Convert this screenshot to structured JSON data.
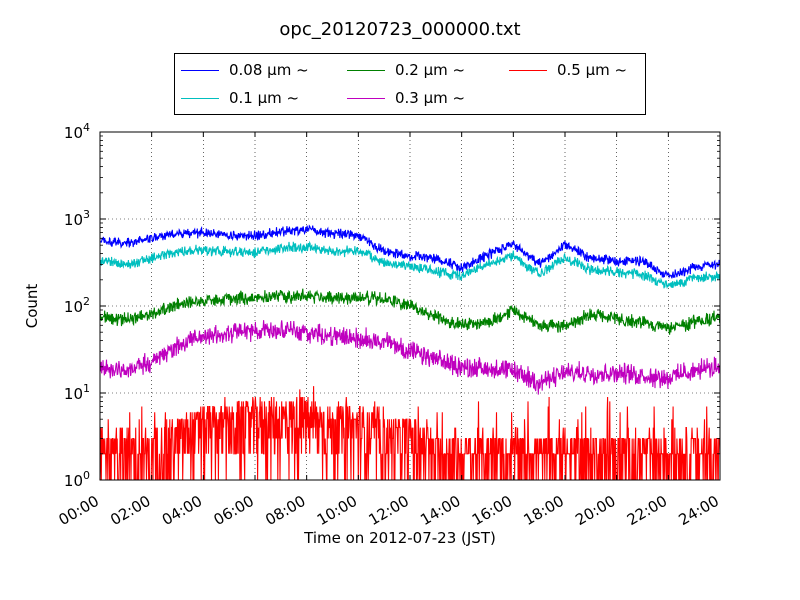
{
  "chart_data": {
    "type": "line",
    "title": "opc_20120723_000000.txt",
    "xlabel": "Time on 2012-07-23 (JST)",
    "ylabel": "Count",
    "y_scale": "log",
    "ylim": [
      1,
      10000
    ],
    "xlim": [
      "00:00",
      "24:00"
    ],
    "x_ticks": [
      "00:00",
      "02:00",
      "04:00",
      "06:00",
      "08:00",
      "10:00",
      "12:00",
      "14:00",
      "16:00",
      "18:00",
      "20:00",
      "22:00",
      "24:00"
    ],
    "y_ticks": [
      {
        "value": 1,
        "base": "10",
        "exp": "0"
      },
      {
        "value": 10,
        "base": "10",
        "exp": "1"
      },
      {
        "value": 100,
        "base": "10",
        "exp": "2"
      },
      {
        "value": 1000,
        "base": "10",
        "exp": "3"
      },
      {
        "value": 10000,
        "base": "10",
        "exp": "4"
      }
    ],
    "grid": true,
    "legend_position": "top-center",
    "series": [
      {
        "name": "0.08 µm ~",
        "color": "#0000ff",
        "x": [
          "00:00",
          "01:00",
          "02:00",
          "03:00",
          "04:00",
          "05:00",
          "06:00",
          "07:00",
          "08:00",
          "09:00",
          "10:00",
          "11:00",
          "12:00",
          "13:00",
          "14:00",
          "15:00",
          "16:00",
          "17:00",
          "18:00",
          "19:00",
          "20:00",
          "21:00",
          "22:00",
          "23:00",
          "24:00"
        ],
        "values": [
          560,
          520,
          600,
          680,
          700,
          650,
          640,
          720,
          750,
          680,
          650,
          420,
          380,
          350,
          280,
          380,
          520,
          300,
          520,
          350,
          330,
          330,
          220,
          280,
          310
        ]
      },
      {
        "name": "0.1 µm ~",
        "color": "#00bfbf",
        "x": [
          "00:00",
          "01:00",
          "02:00",
          "03:00",
          "04:00",
          "05:00",
          "06:00",
          "07:00",
          "08:00",
          "09:00",
          "10:00",
          "11:00",
          "12:00",
          "13:00",
          "14:00",
          "15:00",
          "16:00",
          "17:00",
          "18:00",
          "19:00",
          "20:00",
          "21:00",
          "22:00",
          "23:00",
          "24:00"
        ],
        "values": [
          330,
          300,
          360,
          420,
          440,
          420,
          410,
          460,
          480,
          420,
          430,
          310,
          290,
          250,
          220,
          300,
          380,
          230,
          360,
          260,
          250,
          230,
          170,
          210,
          220
        ]
      },
      {
        "name": "0.2 µm ~",
        "color": "#008000",
        "x": [
          "00:00",
          "01:00",
          "02:00",
          "03:00",
          "04:00",
          "05:00",
          "06:00",
          "07:00",
          "08:00",
          "09:00",
          "10:00",
          "11:00",
          "12:00",
          "13:00",
          "14:00",
          "15:00",
          "16:00",
          "17:00",
          "18:00",
          "19:00",
          "20:00",
          "21:00",
          "22:00",
          "23:00",
          "24:00"
        ],
        "values": [
          75,
          70,
          80,
          105,
          115,
          120,
          125,
          130,
          130,
          125,
          125,
          120,
          100,
          75,
          62,
          65,
          90,
          60,
          60,
          80,
          70,
          65,
          55,
          65,
          75
        ]
      },
      {
        "name": "0.3 µm ~",
        "color": "#bf00bf",
        "x": [
          "00:00",
          "01:00",
          "02:00",
          "03:00",
          "04:00",
          "05:00",
          "06:00",
          "07:00",
          "08:00",
          "09:00",
          "10:00",
          "11:00",
          "12:00",
          "13:00",
          "14:00",
          "15:00",
          "16:00",
          "17:00",
          "18:00",
          "19:00",
          "20:00",
          "21:00",
          "22:00",
          "23:00",
          "24:00"
        ],
        "values": [
          20,
          18,
          23,
          35,
          45,
          48,
          52,
          55,
          50,
          45,
          42,
          40,
          30,
          24,
          20,
          19,
          18,
          13,
          17,
          17,
          17,
          16,
          15,
          18,
          20
        ]
      },
      {
        "name": "0.5 µm ~",
        "color": "#ff0000",
        "x": [
          "00:00",
          "01:00",
          "02:00",
          "03:00",
          "04:00",
          "05:00",
          "06:00",
          "07:00",
          "08:00",
          "09:00",
          "10:00",
          "11:00",
          "12:00",
          "13:00",
          "14:00",
          "15:00",
          "16:00",
          "17:00",
          "18:00",
          "19:00",
          "20:00",
          "21:00",
          "22:00",
          "23:00",
          "24:00"
        ],
        "values": [
          2,
          2,
          2,
          3,
          4,
          4,
          5,
          5,
          5,
          4,
          4,
          3,
          3,
          2,
          2,
          2,
          2,
          2,
          2,
          2,
          2,
          2,
          2,
          2,
          2
        ]
      }
    ]
  }
}
